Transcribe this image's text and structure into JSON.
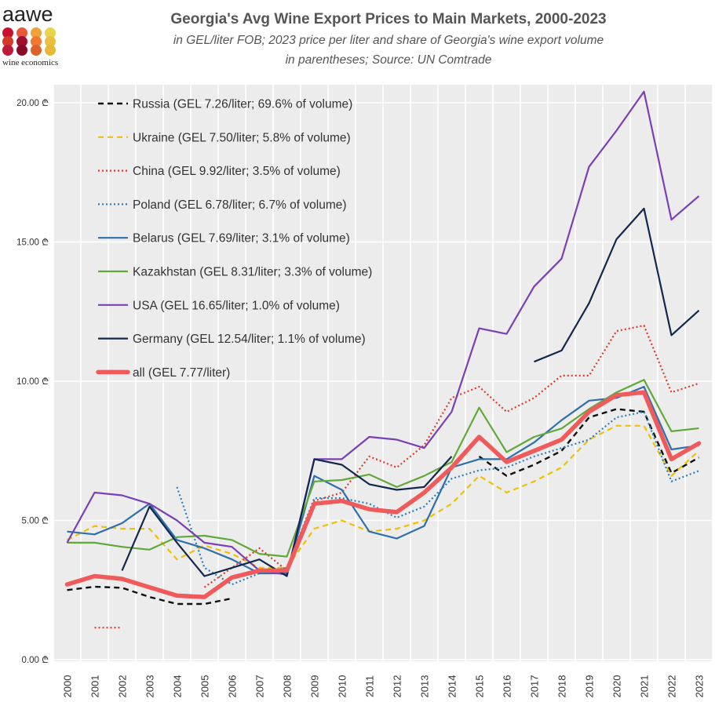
{
  "logo": {
    "name": "aawe",
    "tagline": "wine economics",
    "dots": [
      "#c8102e",
      "#e8583a",
      "#f0a23a",
      "#e8d44a",
      "#d43a2a",
      "#a0102e",
      "#f07a30",
      "#e8c040",
      "#c01a3a",
      "#8a0a28",
      "#e0602a",
      "#e8b838"
    ]
  },
  "chart_data": {
    "type": "line",
    "title": "Georgia's Avg Wine Export Prices to Main Markets, 2000-2023",
    "subtitle_line1": "in GEL/liter FOB; 2023 price per liter and share of Georgia's wine export volume",
    "subtitle_line2": "in parentheses;  Source: UN Comtrade",
    "x": [
      "2000",
      "2001",
      "2002",
      "2003",
      "2004",
      "2005",
      "2006",
      "2007",
      "2008",
      "2009",
      "2010",
      "2011",
      "2012",
      "2013",
      "2014",
      "2015",
      "2016",
      "2017",
      "2018",
      "2019",
      "2020",
      "2021",
      "2022",
      "2023"
    ],
    "ylim": [
      0,
      20.4
    ],
    "y_ticks": [
      0,
      5,
      10,
      15,
      20
    ],
    "y_tick_labels": [
      "0.00 ₾",
      "5.00 ₾",
      "10.00 ₾",
      "15.00 ₾",
      "20.00 ₾"
    ],
    "grid": true,
    "legend_position": "top-left",
    "series": [
      {
        "name": "Russia (GEL 7.26/liter; 69.6% of volume)",
        "color": "#111111",
        "width": 2.4,
        "dash": "7,5",
        "values": [
          2.5,
          2.62,
          2.58,
          2.25,
          2.0,
          2.0,
          2.2,
          null,
          null,
          null,
          null,
          null,
          null,
          null,
          null,
          7.3,
          6.6,
          7.0,
          7.5,
          8.7,
          9.0,
          8.9,
          6.7,
          7.26
        ]
      },
      {
        "name": "Ukraine (GEL 7.50/liter; 5.8% of volume)",
        "color": "#f0c000",
        "width": 2.2,
        "dash": "7,5",
        "values": [
          4.3,
          4.8,
          4.7,
          4.7,
          3.6,
          4.1,
          3.8,
          3.3,
          3.3,
          4.7,
          5.0,
          4.6,
          4.7,
          5.0,
          5.6,
          6.6,
          6.0,
          6.4,
          6.9,
          7.9,
          8.4,
          8.4,
          6.6,
          7.5
        ]
      },
      {
        "name": "China (GEL 9.92/liter; 3.5% of volume)",
        "color": "#e03a2a",
        "width": 2.2,
        "dash": "2,3",
        "values": [
          null,
          1.15,
          1.15,
          null,
          null,
          2.6,
          3.3,
          4.0,
          3.2,
          5.7,
          6.0,
          7.3,
          6.9,
          7.7,
          9.4,
          9.8,
          8.9,
          9.4,
          10.2,
          10.2,
          11.8,
          12.0,
          9.6,
          9.92
        ]
      },
      {
        "name": "Poland (GEL 6.78/liter; 6.7% of volume)",
        "color": "#2a7fc0",
        "width": 2.2,
        "dash": "2,3",
        "values": [
          null,
          null,
          null,
          null,
          6.2,
          3.3,
          2.7,
          3.1,
          3.3,
          5.8,
          5.8,
          5.6,
          5.1,
          5.5,
          6.5,
          6.8,
          6.9,
          7.3,
          7.6,
          7.9,
          8.7,
          8.9,
          6.4,
          6.78
        ]
      },
      {
        "name": "Belarus (GEL 7.69/liter; 3.1% of volume)",
        "color": "#2e6fae",
        "width": 2.2,
        "dash": "",
        "values": [
          4.6,
          4.5,
          4.9,
          5.6,
          4.3,
          4.0,
          3.6,
          3.1,
          3.1,
          6.6,
          6.1,
          4.6,
          4.35,
          4.8,
          6.9,
          7.2,
          7.2,
          7.8,
          8.6,
          9.3,
          9.4,
          9.8,
          7.55,
          7.69
        ]
      },
      {
        "name": "Kazakhstan (GEL 8.31/liter; 3.3% of volume)",
        "color": "#62a83a",
        "width": 2.2,
        "dash": "",
        "values": [
          4.2,
          4.2,
          4.05,
          3.95,
          4.4,
          4.45,
          4.3,
          3.8,
          3.7,
          6.4,
          6.45,
          6.65,
          6.2,
          6.6,
          7.1,
          9.05,
          7.45,
          8.0,
          8.3,
          9.0,
          9.6,
          10.05,
          8.2,
          8.31
        ]
      },
      {
        "name": "USA (GEL 16.65/liter; 1.0% of volume)",
        "color": "#7a3fb8",
        "width": 2.2,
        "dash": "",
        "values": [
          4.2,
          6.0,
          5.9,
          5.6,
          5.0,
          4.2,
          4.05,
          3.2,
          3.05,
          7.2,
          7.2,
          8.0,
          7.9,
          7.6,
          8.9,
          11.9,
          11.7,
          13.4,
          14.4,
          17.7,
          19.0,
          20.4,
          15.8,
          16.65
        ]
      },
      {
        "name": "Germany (GEL 12.54/liter; 1.1% of volume)",
        "color": "#13284e",
        "width": 2.2,
        "dash": "",
        "values": [
          null,
          null,
          3.2,
          5.5,
          4.2,
          3.0,
          3.3,
          3.6,
          3.0,
          7.2,
          7.0,
          6.3,
          6.1,
          6.2,
          7.3,
          null,
          null,
          10.7,
          11.1,
          12.8,
          15.1,
          16.2,
          11.65,
          12.54
        ]
      },
      {
        "name": "all (GEL 7.77/liter)",
        "color": "#f05a5a",
        "width": 5.5,
        "dash": "",
        "values": [
          2.7,
          3.0,
          2.9,
          2.6,
          2.3,
          2.25,
          2.95,
          3.2,
          3.2,
          5.6,
          5.7,
          5.4,
          5.3,
          6.0,
          6.9,
          8.0,
          7.1,
          7.5,
          7.9,
          8.9,
          9.5,
          9.6,
          7.2,
          7.77
        ]
      }
    ]
  }
}
